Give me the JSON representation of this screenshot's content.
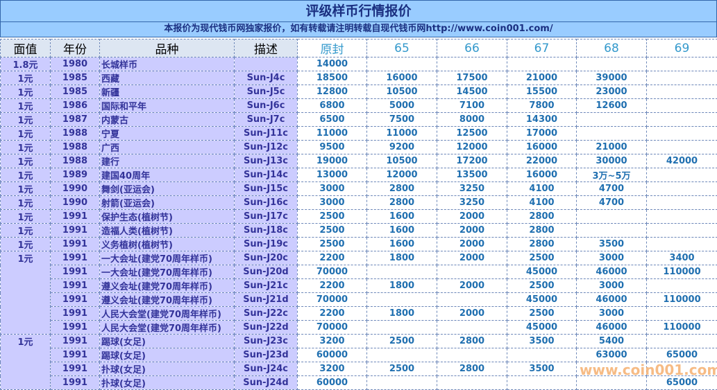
{
  "header": {
    "title": "评级样币行情报价",
    "subtitle": "本报价为现代钱币网独家报价，如有转载请注明转载自现代钱币网http://www.coin001.com/"
  },
  "table": {
    "columns": [
      "面值",
      "年份",
      "品种",
      "描述",
      "原封",
      "65",
      "66",
      "67",
      "68",
      "69"
    ],
    "rows": [
      [
        "1.8元",
        1980,
        "长城样币",
        null,
        14000,
        null,
        null,
        null,
        null,
        null
      ],
      [
        "1元",
        1985,
        "西藏",
        "Sun-J4c",
        18500,
        16000,
        17500,
        21000,
        39000,
        null
      ],
      [
        "1元",
        1985,
        "新疆",
        "Sun-J5c",
        12800,
        10500,
        14500,
        15500,
        23000,
        null
      ],
      [
        "1元",
        1986,
        "国际和平年",
        "Sun-J6c",
        6800,
        5000,
        7100,
        7800,
        12600,
        null
      ],
      [
        "1元",
        1987,
        "内蒙古",
        "Sun-J7c",
        6500,
        7500,
        8000,
        14300,
        null,
        null
      ],
      [
        "1元",
        1988,
        "宁夏",
        "Sun-J11c",
        11000,
        11000,
        12500,
        17000,
        null,
        null
      ],
      [
        "1元",
        1988,
        "广西",
        "Sun-J12c",
        9500,
        9200,
        12000,
        16000,
        21000,
        null
      ],
      [
        "1元",
        1988,
        "建行",
        "Sun-J13c",
        19000,
        10500,
        17200,
        22000,
        30000,
        42000
      ],
      [
        "1元",
        1989,
        "建国40周年",
        "Sun-J14c",
        13000,
        12000,
        13500,
        16000,
        "3万~5万",
        null
      ],
      [
        "1元",
        1990,
        "舞剑(亚运会)",
        "Sun-J15c",
        3000,
        2800,
        3250,
        4100,
        4700,
        null
      ],
      [
        "1元",
        1990,
        "射箭(亚运会)",
        "Sun-J16c",
        3000,
        2800,
        3250,
        4100,
        4700,
        null
      ],
      [
        "1元",
        1991,
        "保护生态(植树节)",
        "Sun-J17c",
        2500,
        1600,
        2000,
        2800,
        null,
        null
      ],
      [
        "1元",
        1991,
        "造福人类(植树节)",
        "Sun-J18c",
        2500,
        1600,
        2000,
        2800,
        null,
        null
      ],
      [
        "1元",
        1991,
        "义务植树(植树节)",
        "Sun-J19c",
        2500,
        1600,
        2000,
        2800,
        3500,
        null
      ],
      [
        "1元",
        1991,
        "一大会址(建党70周年样币)",
        "Sun-J20c",
        2200,
        1800,
        2000,
        2500,
        3000,
        3400
      ],
      [
        null,
        1991,
        "一大会址(建党70周年样币)",
        "Sun-J20d",
        70000,
        null,
        null,
        45000,
        46000,
        110000
      ],
      [
        null,
        1991,
        "遵义会址(建党70周年样币)",
        "Sun-J21c",
        2200,
        1800,
        2000,
        2500,
        3000,
        null
      ],
      [
        null,
        1991,
        "遵义会址(建党70周年样币)",
        "Sun-J21d",
        70000,
        null,
        null,
        45000,
        46000,
        110000
      ],
      [
        null,
        1991,
        "人民大会堂(建党70周年样币)",
        "Sun-J22c",
        2200,
        1800,
        2000,
        2500,
        3000,
        null
      ],
      [
        null,
        1991,
        "人民大会堂(建党70周年样币)",
        "Sun-J22d",
        70000,
        null,
        null,
        45000,
        46000,
        110000
      ],
      [
        "1元",
        1991,
        "踢球(女足)",
        "Sun-J23c",
        3200,
        2500,
        2800,
        3500,
        5400,
        null
      ],
      [
        null,
        1991,
        "踢球(女足)",
        "Sun-J23d",
        60000,
        null,
        null,
        null,
        63000,
        65000
      ],
      [
        null,
        1991,
        "扑球(女足)",
        "Sun-J24c",
        3200,
        2500,
        2800,
        3500,
        null,
        null
      ],
      [
        null,
        1991,
        "扑球(女足)",
        "Sun-J24d",
        60000,
        null,
        null,
        null,
        null,
        65000
      ]
    ]
  },
  "watermark": "www.coin001.com"
}
